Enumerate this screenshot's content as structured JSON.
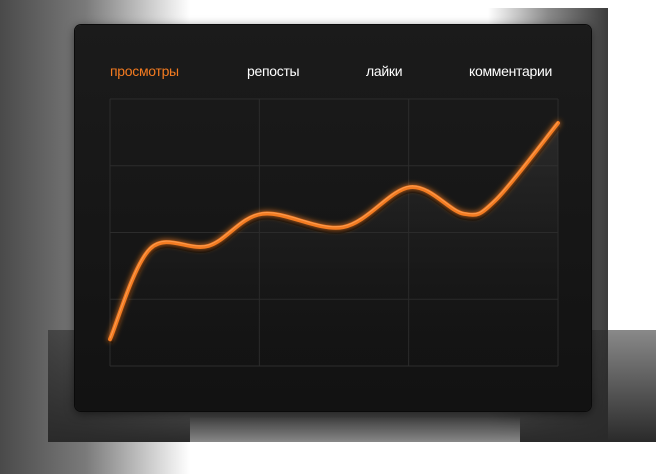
{
  "tabs": [
    {
      "label": "просмотры",
      "active": true
    },
    {
      "label": "репосты",
      "active": false
    },
    {
      "label": "лайки",
      "active": false
    },
    {
      "label": "комментарии",
      "active": false
    }
  ],
  "colors": {
    "accent": "#f47b20",
    "tab_text": "#ffffff",
    "panel_bg": "#161616",
    "grid": "#2c2c2c"
  },
  "chart_data": {
    "type": "line",
    "title": "",
    "xlabel": "",
    "ylabel": "",
    "grid": true,
    "legend": "none",
    "xlim": [
      0,
      1
    ],
    "ylim": [
      0,
      1
    ],
    "series": [
      {
        "color": "#f47b20",
        "points": [
          [
            0.0,
            0.1
          ],
          [
            0.09,
            0.44
          ],
          [
            0.22,
            0.45
          ],
          [
            0.34,
            0.57
          ],
          [
            0.52,
            0.52
          ],
          [
            0.67,
            0.67
          ],
          [
            0.79,
            0.57
          ],
          [
            0.86,
            0.62
          ],
          [
            1.0,
            0.91
          ]
        ]
      }
    ]
  }
}
